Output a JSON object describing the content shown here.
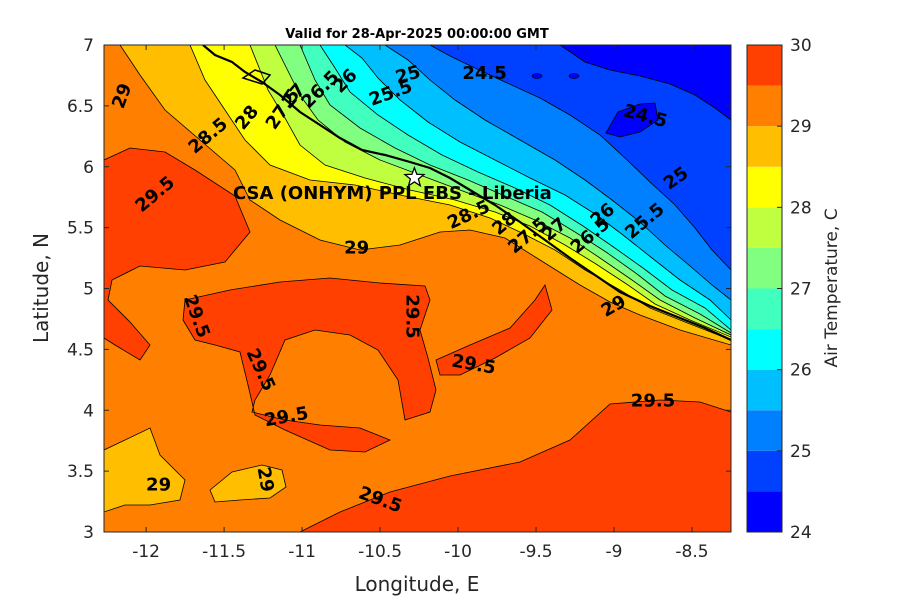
{
  "title": "Valid for 28-Apr-2025 00:00:00 GMT",
  "site_label": "CSA (ONHYM) PPL EBS  - Liberia",
  "chart_data": {
    "type": "contour-map",
    "xlabel": "Longitude, E",
    "ylabel": "Latitude, N",
    "xlim": [
      -12.27,
      -8.25
    ],
    "ylim": [
      3,
      7
    ],
    "xticks": [
      "-12",
      "-11.5",
      "-11",
      "-10.5",
      "-10",
      "-9.5",
      "-9",
      "-8.5"
    ],
    "yticks": [
      "3",
      "3.5",
      "4",
      "4.5",
      "5",
      "5.5",
      "6",
      "6.5",
      "7"
    ],
    "colorbar": {
      "label": "Air Temperature, C",
      "min": 24,
      "max": 30,
      "step": 0.5,
      "ticks": [
        "24",
        "25",
        "26",
        "27",
        "28",
        "29",
        "30"
      ],
      "colors": [
        "#0000ff",
        "#0040ff",
        "#0080ff",
        "#00bfff",
        "#00ffff",
        "#40ffbf",
        "#80ff80",
        "#bfff40",
        "#ffff00",
        "#ffbf00",
        "#ff8000",
        "#ff4000"
      ]
    },
    "site": {
      "lon": -10.28,
      "lat": 5.91
    },
    "contour_labels": [
      {
        "text": "29",
        "lon": -12.15,
        "lat": 6.58,
        "rot": 70
      },
      {
        "text": "28.5",
        "lon": -11.6,
        "lat": 6.25,
        "rot": 40
      },
      {
        "text": "28",
        "lon": -11.35,
        "lat": 6.4,
        "rot": 50
      },
      {
        "text": "27.5",
        "lon": -11.12,
        "lat": 6.47,
        "rot": 55
      },
      {
        "text": "27",
        "lon": -11.05,
        "lat": 6.58,
        "rot": 50
      },
      {
        "text": "26.5",
        "lon": -10.88,
        "lat": 6.63,
        "rot": 45
      },
      {
        "text": "26",
        "lon": -10.72,
        "lat": 6.7,
        "rot": 45
      },
      {
        "text": "25.5",
        "lon": -10.43,
        "lat": 6.6,
        "rot": 20
      },
      {
        "text": "25",
        "lon": -10.32,
        "lat": 6.75,
        "rot": 15
      },
      {
        "text": "24.5",
        "lon": -9.83,
        "lat": 6.76,
        "rot": 0
      },
      {
        "text": "24.5",
        "lon": -8.8,
        "lat": 6.41,
        "rot": -15
      },
      {
        "text": "25",
        "lon": -8.6,
        "lat": 5.9,
        "rot": 35
      },
      {
        "text": "25.5",
        "lon": -8.8,
        "lat": 5.55,
        "rot": 40
      },
      {
        "text": "26",
        "lon": -9.07,
        "lat": 5.6,
        "rot": 40
      },
      {
        "text": "26.5",
        "lon": -9.15,
        "lat": 5.43,
        "rot": 40
      },
      {
        "text": "27",
        "lon": -9.38,
        "lat": 5.48,
        "rot": 40
      },
      {
        "text": "27.5",
        "lon": -9.55,
        "lat": 5.43,
        "rot": 40
      },
      {
        "text": "28",
        "lon": -9.7,
        "lat": 5.53,
        "rot": 40
      },
      {
        "text": "28.5",
        "lon": -9.93,
        "lat": 5.6,
        "rot": 25
      },
      {
        "text": "29",
        "lon": -10.65,
        "lat": 5.33,
        "rot": 0
      },
      {
        "text": "29.5",
        "lon": -11.94,
        "lat": 5.77,
        "rot": 40
      },
      {
        "text": "29.5",
        "lon": -11.68,
        "lat": 4.77,
        "rot": -70
      },
      {
        "text": "29.5",
        "lon": -10.3,
        "lat": 4.77,
        "rot": -90
      },
      {
        "text": "29.5",
        "lon": -11.27,
        "lat": 4.33,
        "rot": -65
      },
      {
        "text": "29.5",
        "lon": -11.1,
        "lat": 3.94,
        "rot": 10
      },
      {
        "text": "29.5",
        "lon": -9.9,
        "lat": 4.37,
        "rot": -10
      },
      {
        "text": "29.5",
        "lon": -8.75,
        "lat": 4.07,
        "rot": 0
      },
      {
        "text": "29.5",
        "lon": -10.5,
        "lat": 3.26,
        "rot": -20
      },
      {
        "text": "29",
        "lon": -11.24,
        "lat": 3.43,
        "rot": -80
      },
      {
        "text": "29",
        "lon": -11.92,
        "lat": 3.38,
        "rot": 0
      },
      {
        "text": "29",
        "lon": -9.0,
        "lat": 4.85,
        "rot": 30
      }
    ]
  }
}
